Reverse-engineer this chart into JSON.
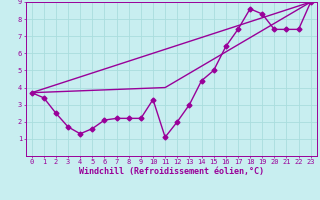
{
  "xlabel": "Windchill (Refroidissement éolien,°C)",
  "ylabel": "",
  "background_color": "#c8eef0",
  "grid_color": "#aadddd",
  "line_color": "#990099",
  "xlim": [
    -0.5,
    23.5
  ],
  "ylim": [
    0,
    9
  ],
  "xticks": [
    0,
    1,
    2,
    3,
    4,
    5,
    6,
    7,
    8,
    9,
    10,
    11,
    12,
    13,
    14,
    15,
    16,
    17,
    18,
    19,
    20,
    21,
    22,
    23
  ],
  "yticks": [
    1,
    2,
    3,
    4,
    5,
    6,
    7,
    8,
    9
  ],
  "line1_x": [
    0,
    1,
    2,
    3,
    4,
    5,
    6,
    7,
    8,
    9,
    10,
    11,
    12,
    13,
    14,
    15,
    16,
    17,
    18,
    19,
    20,
    21,
    22,
    23
  ],
  "line1_y": [
    3.7,
    3.4,
    2.5,
    1.7,
    1.3,
    1.6,
    2.1,
    2.2,
    2.2,
    2.2,
    3.3,
    1.1,
    2.0,
    3.0,
    4.4,
    5.0,
    6.4,
    7.4,
    8.6,
    8.3,
    7.4,
    7.4,
    7.4,
    9.0
  ],
  "line2_x": [
    0,
    23
  ],
  "line2_y": [
    3.7,
    9.0
  ],
  "line3_x": [
    0,
    11,
    23
  ],
  "line3_y": [
    3.7,
    4.0,
    9.0
  ],
  "marker": "D",
  "markersize": 2.5,
  "linewidth": 1.0,
  "font_color": "#990099",
  "tick_fontsize": 5.0,
  "label_fontsize": 6.0
}
